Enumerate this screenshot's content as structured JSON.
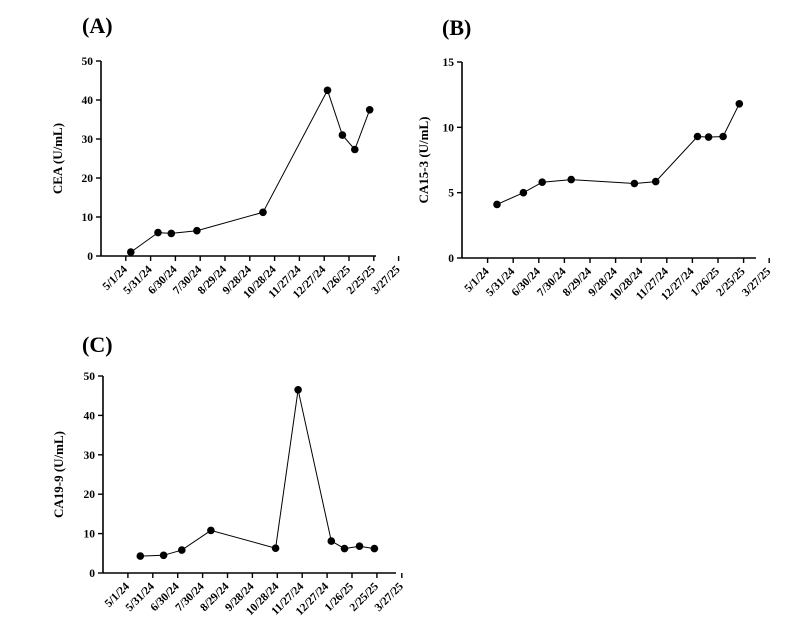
{
  "chart_data": [
    {
      "panel": "(A)",
      "type": "line",
      "ylabel": "CEA (U/mL)",
      "ylim": [
        0,
        50
      ],
      "yticks": [
        0,
        10,
        20,
        30,
        40,
        50
      ],
      "xticks": [
        "5/1/24",
        "5/31/24",
        "6/30/24",
        "7/30/24",
        "8/29/24",
        "9/28/24",
        "10/28/24",
        "11/27/24",
        "12/27/24",
        "1/26/25",
        "2/25/25",
        "3/27/25"
      ],
      "xlim": [
        "2024-05-01",
        "2025-03-27"
      ],
      "points": [
        {
          "x": "2024-05-07",
          "y": 1.0
        },
        {
          "x": "2024-06-09",
          "y": 6.0
        },
        {
          "x": "2024-06-25",
          "y": 5.8
        },
        {
          "x": "2024-07-26",
          "y": 6.5
        },
        {
          "x": "2024-10-14",
          "y": 11.2
        },
        {
          "x": "2024-12-31",
          "y": 42.5
        },
        {
          "x": "2025-01-18",
          "y": 31.0
        },
        {
          "x": "2025-02-02",
          "y": 27.3
        },
        {
          "x": "2025-02-20",
          "y": 37.5
        }
      ]
    },
    {
      "panel": "(B)",
      "type": "line",
      "ylabel": "CA15-3 (U/mL)",
      "ylim": [
        0,
        15
      ],
      "yticks": [
        0,
        5,
        10,
        15
      ],
      "xticks": [
        "5/1/24",
        "5/31/24",
        "6/30/24",
        "7/30/24",
        "8/29/24",
        "9/28/24",
        "10/28/24",
        "11/27/24",
        "12/27/24",
        "1/26/25",
        "2/25/25",
        "3/27/25"
      ],
      "xlim": [
        "2024-05-01",
        "2025-03-27"
      ],
      "points": [
        {
          "x": "2024-05-12",
          "y": 4.1
        },
        {
          "x": "2024-06-12",
          "y": 5.0
        },
        {
          "x": "2024-07-04",
          "y": 5.8
        },
        {
          "x": "2024-08-07",
          "y": 6.0
        },
        {
          "x": "2024-10-20",
          "y": 5.7
        },
        {
          "x": "2024-11-14",
          "y": 5.85
        },
        {
          "x": "2025-01-02",
          "y": 9.3
        },
        {
          "x": "2025-01-15",
          "y": 9.25
        },
        {
          "x": "2025-02-01",
          "y": 9.3
        },
        {
          "x": "2025-02-20",
          "y": 11.8
        }
      ]
    },
    {
      "panel": "(C)",
      "type": "line",
      "ylabel": "CA19-9 (U/mL)",
      "ylim": [
        0,
        50
      ],
      "yticks": [
        0,
        10,
        20,
        30,
        40,
        50
      ],
      "xticks": [
        "5/1/24",
        "5/31/24",
        "6/30/24",
        "7/30/24",
        "8/29/24",
        "9/28/24",
        "10/28/24",
        "11/27/24",
        "12/27/24",
        "1/26/25",
        "2/25/25",
        "3/27/25"
      ],
      "xlim": [
        "2024-05-01",
        "2025-03-27"
      ],
      "points": [
        {
          "x": "2024-05-16",
          "y": 4.3
        },
        {
          "x": "2024-06-13",
          "y": 4.5
        },
        {
          "x": "2024-07-05",
          "y": 5.8
        },
        {
          "x": "2024-08-09",
          "y": 10.8
        },
        {
          "x": "2024-10-26",
          "y": 6.3
        },
        {
          "x": "2024-11-22",
          "y": 46.5
        },
        {
          "x": "2025-01-01",
          "y": 8.1
        },
        {
          "x": "2025-01-17",
          "y": 6.2
        },
        {
          "x": "2025-02-04",
          "y": 6.8
        },
        {
          "x": "2025-02-22",
          "y": 6.2
        }
      ]
    }
  ]
}
